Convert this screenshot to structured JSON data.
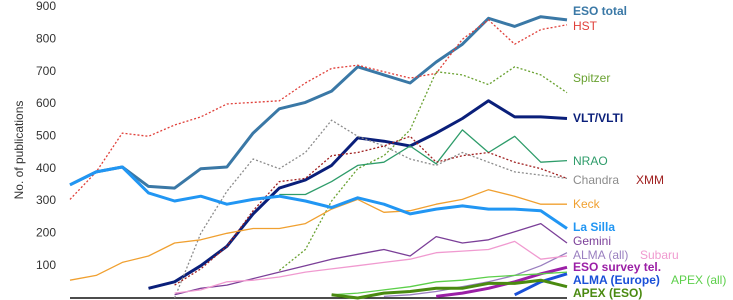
{
  "chart_data": {
    "type": "line",
    "y_label": "No. of publications",
    "categories": [
      null,
      null,
      null,
      null,
      null,
      null,
      null,
      null,
      null,
      null,
      null,
      null,
      null,
      null,
      null,
      null,
      null,
      null,
      null,
      null
    ],
    "ylim": [
      0,
      900
    ],
    "yticks": [
      100,
      200,
      300,
      400,
      500,
      600,
      700,
      800,
      900
    ],
    "grid": false,
    "series": [
      {
        "name": "ESO total",
        "color": "#3a78a6",
        "bold": true,
        "values": [
          350,
          390,
          405,
          345,
          340,
          400,
          405,
          510,
          585,
          605,
          640,
          715,
          690,
          665,
          730,
          785,
          865,
          840,
          870,
          860
        ]
      },
      {
        "name": "HST",
        "color": "#e0403a",
        "style": "dotted",
        "values": [
          305,
          390,
          510,
          500,
          535,
          560,
          600,
          605,
          610,
          665,
          710,
          720,
          700,
          680,
          695,
          800,
          860,
          785,
          830,
          845
        ]
      },
      {
        "name": "Spitzer",
        "color": "#6aa232",
        "style": "dotted",
        "values": [
          null,
          null,
          null,
          null,
          null,
          null,
          null,
          null,
          85,
          150,
          300,
          400,
          440,
          520,
          700,
          690,
          660,
          715,
          690,
          635
        ]
      },
      {
        "name": "VLT/VLTI",
        "color": "#0a1f7a",
        "bold": true,
        "values": [
          null,
          null,
          null,
          30,
          50,
          100,
          160,
          260,
          340,
          365,
          410,
          495,
          485,
          470,
          510,
          555,
          610,
          560,
          560,
          555
        ]
      },
      {
        "name": "NRAO",
        "color": "#2e9c6a",
        "values": [
          null,
          null,
          null,
          null,
          null,
          null,
          null,
          null,
          320,
          320,
          360,
          410,
          420,
          470,
          415,
          520,
          450,
          500,
          420,
          425
        ]
      },
      {
        "name": "Chandra",
        "color": "#8c8c8c",
        "style": "dotted",
        "values": [
          null,
          null,
          null,
          null,
          0,
          200,
          330,
          430,
          400,
          450,
          550,
          500,
          470,
          430,
          410,
          450,
          420,
          390,
          380,
          370
        ]
      },
      {
        "name": "XMM",
        "color": "#a02020",
        "style": "dotted",
        "values": [
          null,
          null,
          null,
          null,
          40,
          90,
          160,
          270,
          360,
          370,
          440,
          450,
          470,
          500,
          420,
          440,
          450,
          420,
          400,
          370
        ]
      },
      {
        "name": "Keck",
        "color": "#f0a030",
        "values": [
          55,
          70,
          110,
          130,
          170,
          180,
          200,
          215,
          215,
          230,
          275,
          305,
          265,
          270,
          290,
          305,
          335,
          315,
          290,
          290
        ]
      },
      {
        "name": "La Silla",
        "color": "#2196f3",
        "bold": true,
        "values": [
          350,
          390,
          405,
          325,
          300,
          315,
          290,
          305,
          315,
          300,
          280,
          310,
          290,
          260,
          275,
          285,
          275,
          275,
          270,
          215
        ]
      },
      {
        "name": "Gemini",
        "color": "#7b3f98",
        "values": [
          null,
          null,
          null,
          null,
          10,
          30,
          40,
          60,
          80,
          100,
          120,
          135,
          150,
          130,
          190,
          170,
          180,
          205,
          230,
          170
        ]
      },
      {
        "name": "ALMA (all)",
        "color": "#9a7fc0",
        "values": [
          null,
          null,
          null,
          null,
          null,
          null,
          null,
          null,
          null,
          null,
          null,
          null,
          5,
          10,
          20,
          35,
          50,
          70,
          100,
          140
        ]
      },
      {
        "name": "Subaru",
        "color": "#f09ad0",
        "values": [
          null,
          null,
          null,
          null,
          15,
          25,
          50,
          55,
          65,
          80,
          90,
          100,
          110,
          120,
          140,
          145,
          150,
          175,
          120,
          130
        ]
      },
      {
        "name": "ESO survey tel.",
        "color": "#9b1fa6",
        "bold": true,
        "values": [
          null,
          null,
          null,
          null,
          null,
          null,
          null,
          null,
          null,
          null,
          null,
          null,
          null,
          null,
          5,
          15,
          30,
          50,
          75,
          95
        ]
      },
      {
        "name": "ALMA (Europe)",
        "color": "#1a50d8",
        "bold": true,
        "values": [
          null,
          null,
          null,
          null,
          null,
          null,
          null,
          null,
          null,
          null,
          null,
          null,
          null,
          null,
          null,
          null,
          null,
          10,
          50,
          75
        ]
      },
      {
        "name": "APEX (all)",
        "color": "#5ccf4a",
        "values": [
          null,
          null,
          null,
          null,
          null,
          null,
          null,
          null,
          null,
          null,
          10,
          15,
          25,
          35,
          50,
          55,
          65,
          70,
          75,
          80
        ]
      },
      {
        "name": "APEX (ESO)",
        "color": "#4a8a10",
        "bold": true,
        "values": [
          null,
          null,
          null,
          null,
          null,
          null,
          null,
          null,
          null,
          null,
          10,
          0,
          15,
          20,
          30,
          30,
          45,
          45,
          55,
          35
        ]
      }
    ]
  }
}
